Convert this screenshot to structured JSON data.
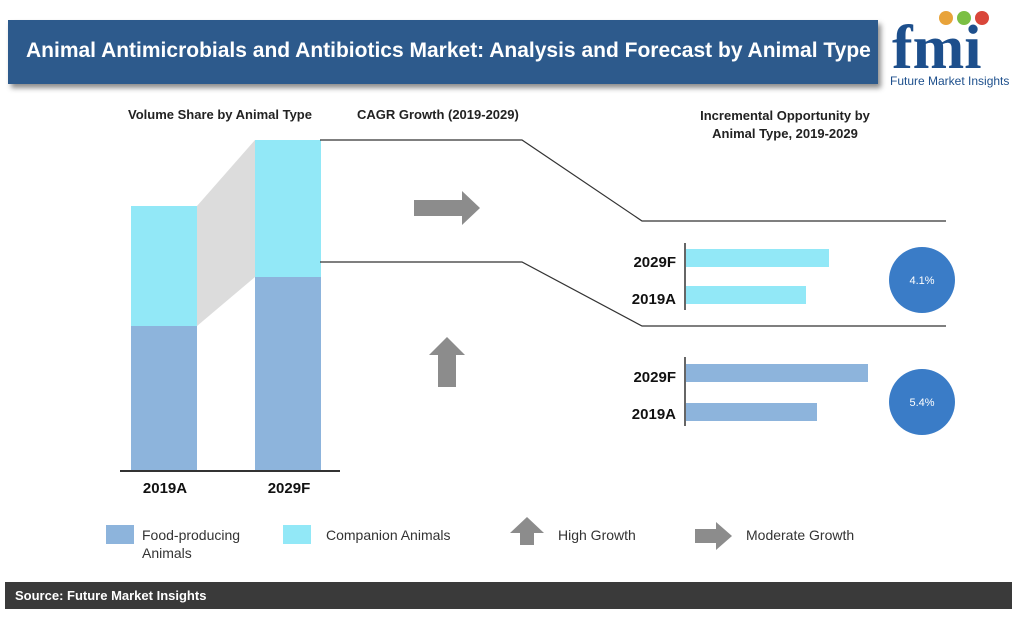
{
  "title": "Animal Antimicrobials and Antibiotics Market: Analysis and Forecast by Animal Type",
  "logo": {
    "text": "fmi",
    "subtitle": "Future Market Insights"
  },
  "colors": {
    "title_bg": "#2d5a8c",
    "food": "#8db4dc",
    "companion": "#92e8f7",
    "circle": "#3a7cc7",
    "arrow": "#8c8c8c",
    "source_bg": "#3a3a3a"
  },
  "headings": {
    "volume_share": "Volume Share by Animal Type",
    "cagr": "CAGR Growth (2019-2029)",
    "incremental": "Incremental Opportunity by Animal Type, 2019-2029"
  },
  "chart_data": [
    {
      "type": "bar",
      "stacked": true,
      "title": "Volume Share by Animal Type",
      "categories": [
        "2019A",
        "2029F"
      ],
      "series": [
        {
          "name": "Food-producing Animals",
          "values": [
            144,
            193
          ]
        },
        {
          "name": "Companion Animals",
          "values": [
            120,
            137
          ]
        }
      ]
    },
    {
      "type": "bar",
      "orientation": "horizontal",
      "title": "Incremental Opportunity by Animal Type, 2019-2029",
      "segment": "Companion Animals",
      "categories": [
        "2029F",
        "2019A"
      ],
      "values": [
        143,
        120
      ],
      "cagr": "4.1%",
      "growth": "Moderate Growth"
    },
    {
      "type": "bar",
      "orientation": "horizontal",
      "title": "Incremental Opportunity by Animal Type, 2019-2029",
      "segment": "Food-producing Animals",
      "categories": [
        "2029F",
        "2019A"
      ],
      "values": [
        182,
        131
      ],
      "cagr": "5.4%",
      "growth": "High Growth"
    }
  ],
  "legend": {
    "food": "Food-producing Animals",
    "companion": "Companion Animals",
    "high": "High Growth",
    "moderate": "Moderate Growth"
  },
  "source": "Source: Future Market Insights"
}
